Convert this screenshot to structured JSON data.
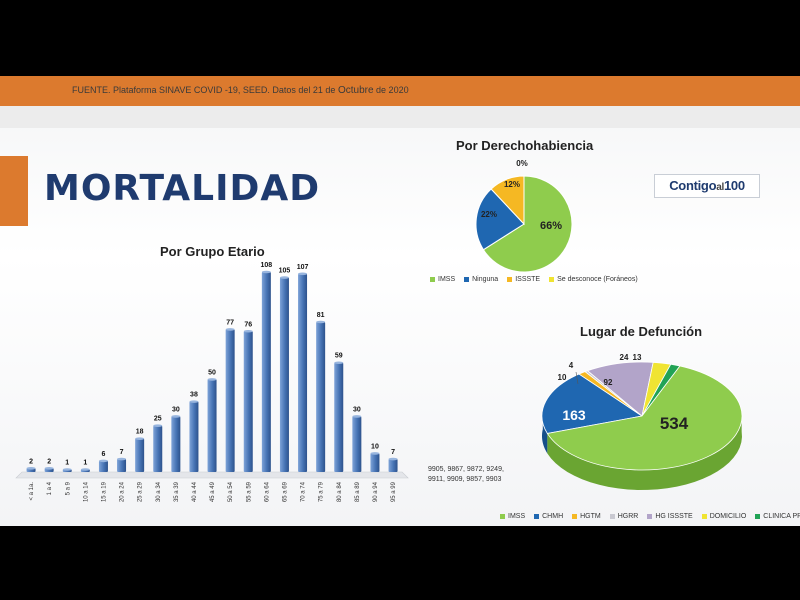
{
  "header": {
    "source_prefix": "FUENTE. Plataforma SINAVE COVID -19, SEED. Datos del 21 de",
    "source_month": "Octubre",
    "source_suffix": "de 2020"
  },
  "title": "MORTALIDAD",
  "logo": {
    "part1": "Contigo",
    "part2": "al",
    "part3": "100"
  },
  "ids_note": [
    "9905, 9867, 9872, 9249,",
    "9911, 9909, 9857, 9903"
  ],
  "colors": {
    "orange": "#dc7a2e",
    "navy": "#1f3b6f",
    "bar": "#4673b4"
  },
  "chart_data": [
    {
      "type": "bar",
      "title": "Por Grupo Etario",
      "categories": [
        "< a 1a.",
        "1 a 4",
        "5 a 9",
        "10 a 14",
        "15 a 19",
        "20 a 24",
        "25 a 29",
        "30 a 34",
        "35 a 39",
        "40 a 44",
        "45 a 49",
        "50 a 54",
        "55 a 59",
        "60 a 64",
        "65 a 69",
        "70 a 74",
        "75 a 79",
        "80 a 84",
        "85 a 89",
        "90 a 94",
        "95 a 99"
      ],
      "values": [
        2,
        2,
        1,
        1,
        6,
        7,
        18,
        25,
        30,
        38,
        50,
        77,
        76,
        108,
        105,
        107,
        81,
        59,
        30,
        10,
        7
      ],
      "data_labels": true,
      "grid": false
    },
    {
      "type": "pie",
      "title": "Por Derechohabiencia",
      "labels": [
        "IMSS",
        "Ninguna",
        "ISSSTE",
        "Se desconoce (Foráneos)"
      ],
      "values": [
        66,
        22,
        12,
        0
      ],
      "value_labels": [
        "66%",
        "22%",
        "12%",
        "0%"
      ],
      "colors": [
        "#8fcc4d",
        "#1f67b1",
        "#f5b823",
        "#f0e432"
      ],
      "legend": "bottom"
    },
    {
      "type": "pie",
      "title": "Lugar de Defunción",
      "labels": [
        "IMSS",
        "CHMH",
        "HGTM",
        "HGRR",
        "HG ISSSTE",
        "DOMICILIO",
        "CLINICA PRIVADA"
      ],
      "values": [
        534,
        163,
        10,
        4,
        92,
        24,
        13
      ],
      "value_labels": [
        "534",
        "163",
        "10",
        "4",
        "92",
        "24",
        "13"
      ],
      "colors": [
        "#8fcc4d",
        "#1f67b1",
        "#f5b823",
        "#c9c9d1",
        "#b2a4c9",
        "#f0e432",
        "#21a356"
      ],
      "legend": "bottom",
      "style": "3d"
    }
  ]
}
